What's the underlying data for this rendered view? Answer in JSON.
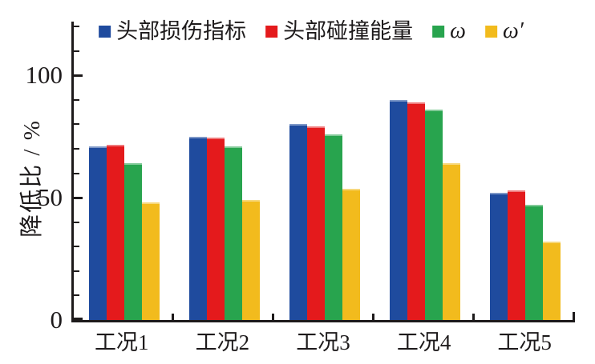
{
  "chart_data": {
    "type": "bar",
    "title": "",
    "categories": [
      "工况1",
      "工况2",
      "工况3",
      "工况4",
      "工况5"
    ],
    "series": [
      {
        "name": "头部损伤指标",
        "color": "#1F4B9E",
        "values": [
          71,
          75,
          80,
          90,
          52
        ]
      },
      {
        "name": "头部碰撞能量",
        "color": "#E41A1C",
        "values": [
          71.5,
          74.5,
          79,
          89,
          53
        ]
      },
      {
        "name": "ω",
        "color": "#28A44E",
        "values": [
          64,
          71,
          76,
          86,
          47
        ]
      },
      {
        "name": "ω′",
        "color": "#F2BB1D",
        "values": [
          48,
          49,
          53.5,
          64,
          32
        ]
      }
    ],
    "xlabel": "",
    "ylabel": "降低比 / %",
    "ylim": [
      0,
      122
    ],
    "yticks_major": [
      0,
      50,
      100
    ],
    "ytick_minor_step": 10,
    "legend_position": "top",
    "grid": false,
    "axis_color": "#1d1a1b"
  }
}
